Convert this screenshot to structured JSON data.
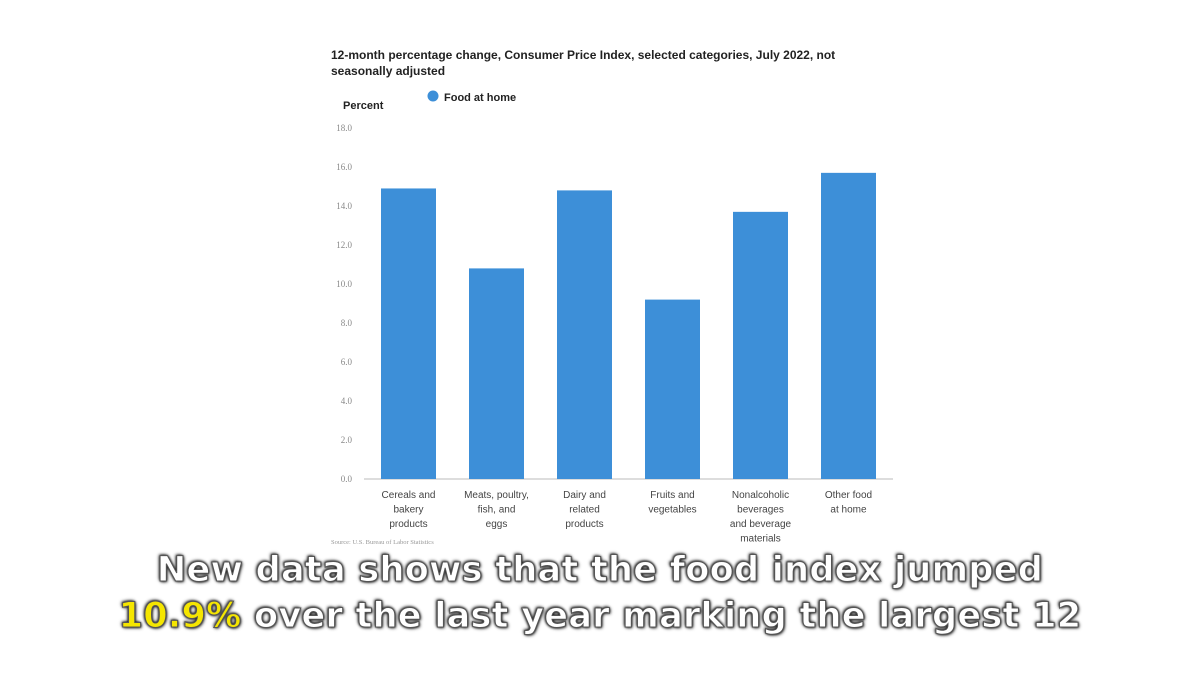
{
  "chart_data": {
    "type": "bar",
    "title": "12-month percentage change, Consumer Price Index, selected categories, July 2022, not seasonally adjusted",
    "ylabel": "Percent",
    "xlabel": "",
    "legend": {
      "placement": "top",
      "entries": [
        "Food at home"
      ]
    },
    "categories": [
      "Cereals and bakery products",
      "Meats, poultry, fish, and eggs",
      "Dairy and related products",
      "Fruits and vegetables",
      "Nonalcoholic beverages and beverage materials",
      "Other food at home"
    ],
    "category_lines": [
      [
        "Cereals and",
        "bakery",
        "products"
      ],
      [
        "Meats, poultry,",
        "fish, and",
        "eggs"
      ],
      [
        "Dairy and",
        "related",
        "products"
      ],
      [
        "Fruits and",
        "vegetables"
      ],
      [
        "Nonalcoholic",
        "beverages",
        "and beverage",
        "materials"
      ],
      [
        "Other food",
        "at home"
      ]
    ],
    "series": [
      {
        "name": "Food at home",
        "values": [
          14.9,
          10.8,
          14.8,
          9.2,
          13.7,
          15.7
        ]
      }
    ],
    "ylim": [
      0,
      18
    ],
    "yticks": [
      "0.0",
      "2.0",
      "4.0",
      "6.0",
      "8.0",
      "10.0",
      "12.0",
      "14.0",
      "16.0",
      "18.0"
    ],
    "grid": false,
    "colors": {
      "bar": "#3d8fd8"
    },
    "source": "Source: U.S. Bureau of Labor Statistics"
  },
  "caption": {
    "line1": "New data shows that the food index jumped",
    "line2_highlight": "10.9%",
    "line2_rest": " over the last year marking the largest 12"
  }
}
